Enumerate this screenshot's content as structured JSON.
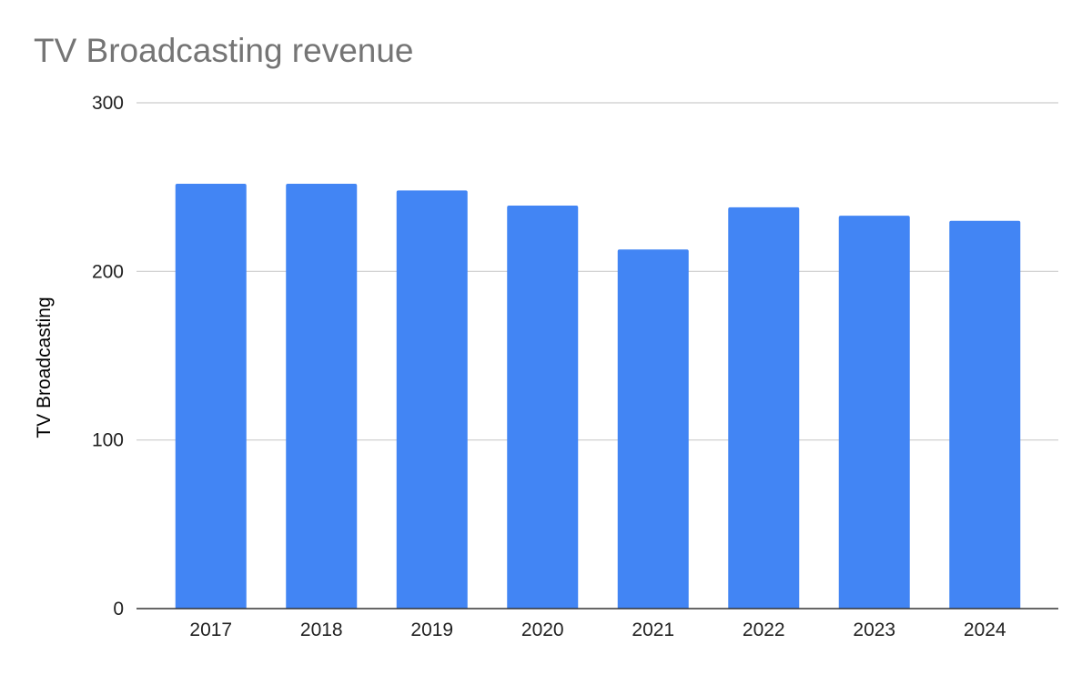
{
  "chart_data": {
    "type": "bar",
    "title": "TV Broadcasting revenue",
    "xlabel": "",
    "ylabel": "TV Broadcasting",
    "categories": [
      "2017",
      "2018",
      "2019",
      "2020",
      "2021",
      "2022",
      "2023",
      "2024"
    ],
    "series": [
      {
        "values": [
          252,
          252,
          248,
          239,
          213,
          238,
          233,
          230
        ],
        "color": "#4285f4"
      }
    ],
    "ylim": [
      0,
      300
    ],
    "yticks": [
      "0",
      "100",
      "200",
      "300"
    ],
    "grid": true,
    "legend": "none"
  }
}
